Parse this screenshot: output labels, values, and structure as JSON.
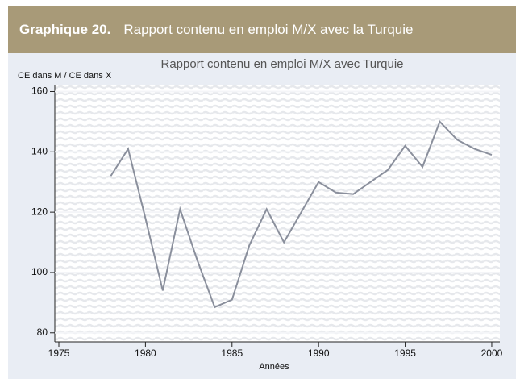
{
  "header": {
    "label": "Graphique 20.",
    "title": "Rapport contenu en emploi M/X avec la Turquie"
  },
  "chart_data": {
    "type": "line",
    "title": "Rapport contenu en emploi M/X avec Turquie",
    "ylabel": "CE dans M / CE dans X",
    "xlabel": "Années",
    "x": [
      1978,
      1979,
      1980,
      1981,
      1982,
      1983,
      1984,
      1985,
      1986,
      1987,
      1988,
      1989,
      1990,
      1991,
      1992,
      1993,
      1994,
      1995,
      1996,
      1997,
      1998,
      1999,
      2000
    ],
    "series": [
      {
        "name": "Rapport",
        "color": "#8a8f9c",
        "values": [
          132,
          141,
          118,
          94,
          121,
          104,
          88.5,
          91,
          109,
          121,
          110,
          120,
          130,
          126.5,
          126,
          130,
          134,
          142,
          135,
          150,
          144,
          141,
          139
        ]
      }
    ],
    "xlim": [
      1975,
      2000.7
    ],
    "xticks": [
      1975,
      1980,
      1985,
      1990,
      1995,
      2000
    ],
    "ylim": [
      77,
      162
    ],
    "yticks": [
      80,
      100,
      120,
      140,
      160
    ],
    "grid": true
  }
}
